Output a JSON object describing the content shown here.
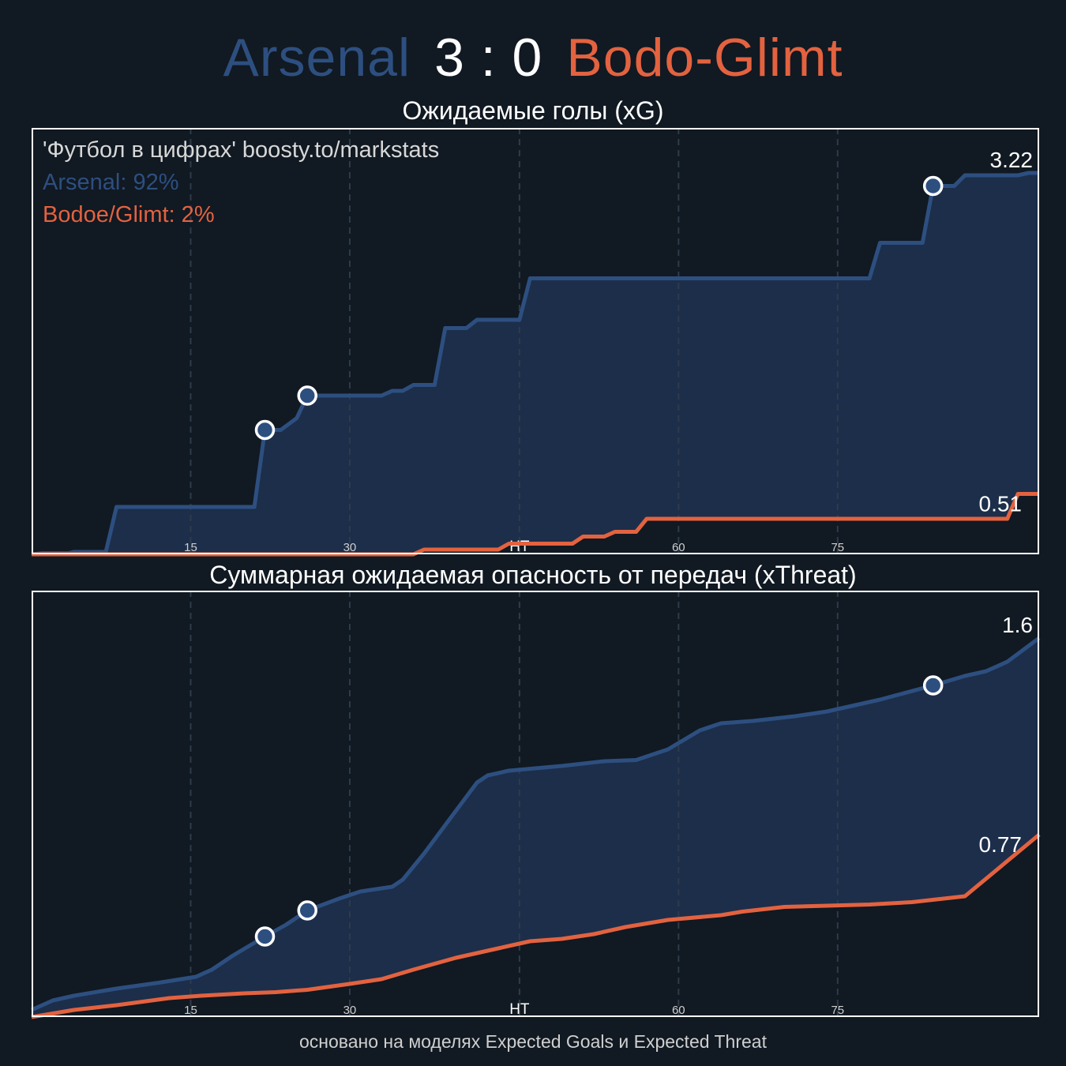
{
  "header": {
    "home_team": "Arsenal",
    "score": "3 : 0",
    "away_team": "Bodo-Glimt"
  },
  "colors": {
    "background": "#111922",
    "home": "#2d4f80",
    "home_fill": "#1c2e4a",
    "away": "#e3623f",
    "grid": "#2e3b4a",
    "frame": "#ffffff"
  },
  "legend": {
    "credit": "'Футбол в цифрах' boosty.to/markstats",
    "home_win": "Arsenal: 92%",
    "away_win": "Bodoe/Glimt: 2%"
  },
  "footer": "основано на моделях Expected Goals и Expected Threat",
  "chart_data": [
    {
      "type": "line",
      "title": "Ожидаемые голы (xG)",
      "step": true,
      "x_ticks": [
        {
          "x": 15,
          "label": "15"
        },
        {
          "x": 30,
          "label": "30"
        },
        {
          "x": 46,
          "label": "HT"
        },
        {
          "x": 61,
          "label": "60"
        },
        {
          "x": 76,
          "label": "75"
        }
      ],
      "xlim": [
        0,
        95
      ],
      "ylim": [
        0,
        3.6
      ],
      "grid": "vertical dashed",
      "end_labels": {
        "home": "3.22",
        "away": "0.51"
      },
      "series": [
        {
          "name": "Arsenal",
          "points": [
            [
              0,
              0
            ],
            [
              1,
              0.01
            ],
            [
              3.5,
              0.01
            ],
            [
              4,
              0.02
            ],
            [
              7,
              0.02
            ],
            [
              8,
              0.4
            ],
            [
              21,
              0.4
            ],
            [
              22,
              1.05
            ],
            [
              23.5,
              1.05
            ],
            [
              25,
              1.15
            ],
            [
              26,
              1.34
            ],
            [
              30,
              1.34
            ],
            [
              33,
              1.34
            ],
            [
              34,
              1.38
            ],
            [
              35,
              1.38
            ],
            [
              36,
              1.43
            ],
            [
              38,
              1.43
            ],
            [
              39,
              1.91
            ],
            [
              41,
              1.91
            ],
            [
              42,
              1.98
            ],
            [
              46,
              1.98
            ],
            [
              47,
              2.33
            ],
            [
              79,
              2.33
            ],
            [
              80,
              2.63
            ],
            [
              84,
              2.63
            ],
            [
              85,
              3.11
            ],
            [
              87,
              3.11
            ],
            [
              88,
              3.2
            ],
            [
              93,
              3.2
            ],
            [
              94,
              3.22
            ],
            [
              95,
              3.22
            ]
          ],
          "goals": [
            22,
            26,
            85
          ]
        },
        {
          "name": "Bodo-Glimt",
          "points": [
            [
              0,
              0
            ],
            [
              36,
              0
            ],
            [
              37,
              0.04
            ],
            [
              44,
              0.04
            ],
            [
              45,
              0.09
            ],
            [
              51,
              0.09
            ],
            [
              52,
              0.15
            ],
            [
              54,
              0.15
            ],
            [
              55,
              0.19
            ],
            [
              57,
              0.19
            ],
            [
              58,
              0.3
            ],
            [
              92,
              0.3
            ],
            [
              93,
              0.51
            ],
            [
              95,
              0.51
            ]
          ],
          "goals": []
        }
      ]
    },
    {
      "type": "line",
      "title": "Суммарная ожидаемая опасность от передач (xThreat)",
      "step": false,
      "x_ticks": [
        {
          "x": 15,
          "label": "15"
        },
        {
          "x": 30,
          "label": "30"
        },
        {
          "x": 46,
          "label": "HT"
        },
        {
          "x": 61,
          "label": "60"
        },
        {
          "x": 76,
          "label": "75"
        }
      ],
      "xlim": [
        0,
        95
      ],
      "ylim": [
        0,
        1.8
      ],
      "grid": "vertical dashed",
      "end_labels": {
        "home": "1.6",
        "away": "0.77"
      },
      "series": [
        {
          "name": "Arsenal",
          "points": [
            [
              0,
              0.03
            ],
            [
              2,
              0.07
            ],
            [
              4,
              0.09
            ],
            [
              8,
              0.12
            ],
            [
              12,
              0.145
            ],
            [
              15.5,
              0.17
            ],
            [
              17,
              0.2
            ],
            [
              19,
              0.26
            ],
            [
              22,
              0.34
            ],
            [
              24,
              0.39
            ],
            [
              26,
              0.45
            ],
            [
              29,
              0.5
            ],
            [
              31,
              0.53
            ],
            [
              34,
              0.55
            ],
            [
              35,
              0.58
            ],
            [
              37,
              0.69
            ],
            [
              39.5,
              0.84
            ],
            [
              42,
              0.99
            ],
            [
              43,
              1.02
            ],
            [
              45,
              1.04
            ],
            [
              50,
              1.06
            ],
            [
              54,
              1.08
            ],
            [
              57,
              1.085
            ],
            [
              60,
              1.13
            ],
            [
              63,
              1.21
            ],
            [
              65,
              1.24
            ],
            [
              68,
              1.25
            ],
            [
              72,
              1.27
            ],
            [
              75,
              1.29
            ],
            [
              78,
              1.32
            ],
            [
              80,
              1.34
            ],
            [
              85,
              1.4
            ],
            [
              88,
              1.44
            ],
            [
              90,
              1.46
            ],
            [
              92,
              1.5
            ],
            [
              95,
              1.6
            ]
          ],
          "goals": [
            22,
            26,
            85
          ]
        },
        {
          "name": "Bodo-Glimt",
          "points": [
            [
              0,
              0
            ],
            [
              4,
              0.03
            ],
            [
              8,
              0.05
            ],
            [
              13,
              0.08
            ],
            [
              16,
              0.09
            ],
            [
              20,
              0.1
            ],
            [
              23,
              0.105
            ],
            [
              26,
              0.115
            ],
            [
              30,
              0.14
            ],
            [
              33,
              0.16
            ],
            [
              36,
              0.2
            ],
            [
              40,
              0.25
            ],
            [
              44,
              0.29
            ],
            [
              47,
              0.32
            ],
            [
              50,
              0.33
            ],
            [
              53,
              0.35
            ],
            [
              56,
              0.38
            ],
            [
              60,
              0.41
            ],
            [
              65,
              0.43
            ],
            [
              67,
              0.445
            ],
            [
              71,
              0.465
            ],
            [
              75,
              0.47
            ],
            [
              79,
              0.475
            ],
            [
              83,
              0.485
            ],
            [
              86,
              0.5
            ],
            [
              88,
              0.51
            ],
            [
              95,
              0.77
            ]
          ],
          "goals": []
        }
      ]
    }
  ]
}
